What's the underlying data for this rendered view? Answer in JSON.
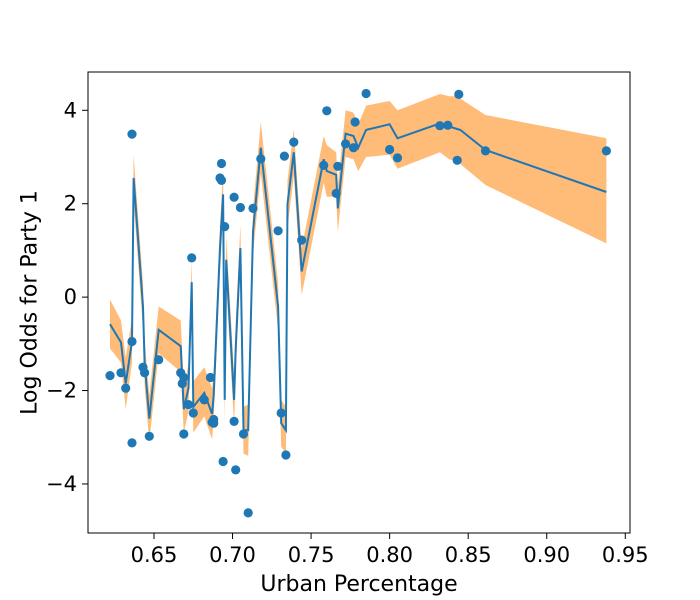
{
  "chart_data": {
    "type": "scatter",
    "title": "",
    "xlabel": "Urban Percentage",
    "ylabel": "Log Odds for Party 1",
    "xlim": [
      0.608,
      0.953
    ],
    "ylim": [
      -5.05,
      4.82
    ],
    "xticks": [
      0.65,
      0.7,
      0.75,
      0.8,
      0.85,
      0.9,
      0.95
    ],
    "xtick_labels": [
      "0.65",
      "0.70",
      "0.75",
      "0.80",
      "0.85",
      "0.90",
      "0.95"
    ],
    "yticks": [
      -4,
      -2,
      0,
      2,
      4
    ],
    "ytick_labels": [
      "−4",
      "−2",
      "0",
      "2",
      "4"
    ],
    "grid": false,
    "colors": {
      "points": "#1f77b4",
      "line": "#1f77b4",
      "band": "#ffbb78"
    },
    "series": [
      {
        "name": "observed",
        "kind": "scatter",
        "points": [
          [
            0.622,
            -1.68
          ],
          [
            0.629,
            -1.62
          ],
          [
            0.632,
            -1.95
          ],
          [
            0.636,
            3.49
          ],
          [
            0.636,
            -0.95
          ],
          [
            0.636,
            -3.12
          ],
          [
            0.643,
            -1.5
          ],
          [
            0.644,
            -1.62
          ],
          [
            0.647,
            -2.98
          ],
          [
            0.653,
            -1.34
          ],
          [
            0.667,
            -1.62
          ],
          [
            0.668,
            -1.85
          ],
          [
            0.669,
            -1.72
          ],
          [
            0.669,
            -2.93
          ],
          [
            0.672,
            -2.3
          ],
          [
            0.674,
            0.84
          ],
          [
            0.675,
            -2.48
          ],
          [
            0.682,
            -2.2
          ],
          [
            0.686,
            -1.72
          ],
          [
            0.687,
            -2.68
          ],
          [
            0.688,
            -2.62
          ],
          [
            0.688,
            -2.7
          ],
          [
            0.692,
            2.55
          ],
          [
            0.693,
            2.5
          ],
          [
            0.693,
            2.86
          ],
          [
            0.694,
            -3.52
          ],
          [
            0.695,
            1.51
          ],
          [
            0.701,
            2.14
          ],
          [
            0.701,
            -2.66
          ],
          [
            0.702,
            -3.7
          ],
          [
            0.705,
            1.92
          ],
          [
            0.707,
            -2.93
          ],
          [
            0.71,
            -4.62
          ],
          [
            0.713,
            1.9
          ],
          [
            0.718,
            2.96
          ],
          [
            0.729,
            1.42
          ],
          [
            0.731,
            -2.48
          ],
          [
            0.733,
            3.02
          ],
          [
            0.734,
            -3.38
          ],
          [
            0.739,
            3.32
          ],
          [
            0.744,
            1.22
          ],
          [
            0.758,
            2.82
          ],
          [
            0.76,
            3.99
          ],
          [
            0.766,
            2.22
          ],
          [
            0.767,
            2.8
          ],
          [
            0.772,
            3.28
          ],
          [
            0.777,
            3.2
          ],
          [
            0.778,
            3.75
          ],
          [
            0.785,
            4.36
          ],
          [
            0.8,
            3.16
          ],
          [
            0.805,
            2.98
          ],
          [
            0.832,
            3.67
          ],
          [
            0.837,
            3.68
          ],
          [
            0.843,
            2.93
          ],
          [
            0.844,
            4.34
          ],
          [
            0.861,
            3.13
          ],
          [
            0.938,
            3.13
          ]
        ]
      },
      {
        "name": "fit",
        "kind": "line",
        "points": [
          [
            0.622,
            -0.58
          ],
          [
            0.629,
            -0.97
          ],
          [
            0.632,
            -1.85
          ],
          [
            0.636,
            -0.95
          ],
          [
            0.637,
            2.55
          ],
          [
            0.643,
            -0.2
          ],
          [
            0.644,
            -1.4
          ],
          [
            0.647,
            -2.6
          ],
          [
            0.653,
            -0.7
          ],
          [
            0.667,
            -1.05
          ],
          [
            0.669,
            -2.4
          ],
          [
            0.672,
            -1.95
          ],
          [
            0.674,
            0.32
          ],
          [
            0.675,
            -2.35
          ],
          [
            0.682,
            -2.05
          ],
          [
            0.687,
            -2.5
          ],
          [
            0.688,
            -2.1
          ],
          [
            0.692,
            1.05
          ],
          [
            0.694,
            2.2
          ],
          [
            0.695,
            -2.2
          ],
          [
            0.696,
            0.8
          ],
          [
            0.701,
            -2.2
          ],
          [
            0.702,
            -1.1
          ],
          [
            0.705,
            1.05
          ],
          [
            0.707,
            -2.85
          ],
          [
            0.71,
            -2.85
          ],
          [
            0.713,
            1.4
          ],
          [
            0.718,
            3.2
          ],
          [
            0.729,
            -0.2
          ],
          [
            0.731,
            -2.7
          ],
          [
            0.734,
            -2.85
          ],
          [
            0.735,
            2.0
          ],
          [
            0.739,
            3.1
          ],
          [
            0.744,
            0.55
          ],
          [
            0.758,
            2.95
          ],
          [
            0.76,
            2.7
          ],
          [
            0.766,
            2.62
          ],
          [
            0.767,
            1.9
          ],
          [
            0.772,
            3.5
          ],
          [
            0.777,
            3.45
          ],
          [
            0.78,
            3.2
          ],
          [
            0.785,
            3.58
          ],
          [
            0.8,
            3.7
          ],
          [
            0.805,
            3.4
          ],
          [
            0.832,
            3.72
          ],
          [
            0.838,
            3.65
          ],
          [
            0.843,
            3.6
          ],
          [
            0.845,
            3.58
          ],
          [
            0.861,
            3.15
          ],
          [
            0.938,
            2.25
          ]
        ]
      },
      {
        "name": "interval",
        "kind": "band",
        "x": [
          0.622,
          0.629,
          0.632,
          0.636,
          0.637,
          0.643,
          0.644,
          0.647,
          0.653,
          0.667,
          0.669,
          0.672,
          0.674,
          0.675,
          0.682,
          0.687,
          0.688,
          0.692,
          0.694,
          0.695,
          0.696,
          0.701,
          0.702,
          0.705,
          0.707,
          0.71,
          0.713,
          0.718,
          0.729,
          0.731,
          0.734,
          0.735,
          0.739,
          0.744,
          0.758,
          0.76,
          0.766,
          0.767,
          0.772,
          0.777,
          0.78,
          0.785,
          0.8,
          0.805,
          0.832,
          0.838,
          0.843,
          0.845,
          0.861,
          0.938
        ],
        "lower": [
          -1.1,
          -1.4,
          -2.4,
          -1.4,
          2.05,
          -0.7,
          -1.9,
          -3.1,
          -1.2,
          -1.6,
          -2.9,
          -2.45,
          -0.15,
          -2.9,
          -2.55,
          -3.05,
          -2.6,
          0.55,
          1.7,
          -2.7,
          0.3,
          -2.75,
          -1.6,
          0.55,
          -3.35,
          -3.4,
          0.9,
          2.65,
          -0.7,
          -3.2,
          -3.35,
          1.5,
          2.6,
          0.05,
          2.45,
          2.15,
          2.15,
          1.4,
          3.0,
          2.95,
          2.7,
          3.0,
          3.05,
          2.75,
          3.1,
          2.95,
          2.9,
          2.85,
          2.4,
          1.15
        ],
        "upper": [
          -0.05,
          -0.5,
          -1.3,
          -0.45,
          3.05,
          0.3,
          -0.9,
          -2.1,
          -0.2,
          -0.5,
          -1.9,
          -1.45,
          0.8,
          -1.8,
          -1.5,
          -1.95,
          -1.55,
          1.55,
          2.7,
          -1.7,
          1.3,
          -1.65,
          -0.55,
          1.55,
          -2.35,
          -2.3,
          1.9,
          3.75,
          0.3,
          -2.2,
          -2.35,
          2.5,
          3.6,
          1.05,
          3.45,
          3.25,
          3.1,
          2.4,
          4.0,
          3.95,
          3.7,
          4.1,
          4.2,
          4.0,
          4.35,
          4.3,
          4.3,
          4.25,
          3.9,
          3.4
        ]
      }
    ]
  }
}
